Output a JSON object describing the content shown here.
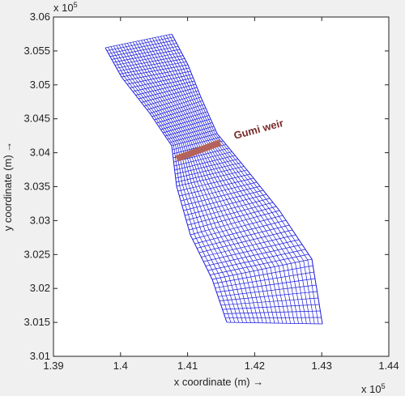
{
  "chart_data": {
    "type": "mesh",
    "x_label": "x coordinate (m) →",
    "y_label": "y coordinate (m) →",
    "x_multiplier": {
      "base": "x 10",
      "exponent": "5"
    },
    "y_multiplier": {
      "base": "x 10",
      "exponent": "5"
    },
    "xlim": [
      1.39,
      1.44
    ],
    "ylim": [
      3.01,
      3.06
    ],
    "xticks": [
      1.39,
      1.4,
      1.41,
      1.42,
      1.43,
      1.44
    ],
    "yticks": [
      3.01,
      3.015,
      3.02,
      3.025,
      3.03,
      3.035,
      3.04,
      3.045,
      3.05,
      3.055,
      3.06
    ],
    "mesh_color": "#1a1adb",
    "left_bank": {
      "x": [
        1.39773,
        1.40014,
        1.40437,
        1.40763,
        1.40836,
        1.41041,
        1.41367,
        1.41585
      ],
      "y": [
        3.05547,
        3.05117,
        3.0458,
        3.04103,
        3.03506,
        3.0279,
        3.02134,
        3.01501
      ]
    },
    "right_bank": {
      "x": [
        1.40763,
        1.41005,
        1.41198,
        1.4144,
        1.41886,
        1.4237,
        1.42853,
        1.4301
      ],
      "y": [
        3.05749,
        3.05296,
        3.04819,
        3.04282,
        3.03745,
        3.03148,
        3.02432,
        3.01477
      ]
    },
    "weir": {
      "x": [
        1.40836,
        1.41488
      ],
      "y": [
        3.03912,
        3.04151
      ],
      "color": "#b5635a"
    },
    "annotation": "Gumi weir"
  }
}
